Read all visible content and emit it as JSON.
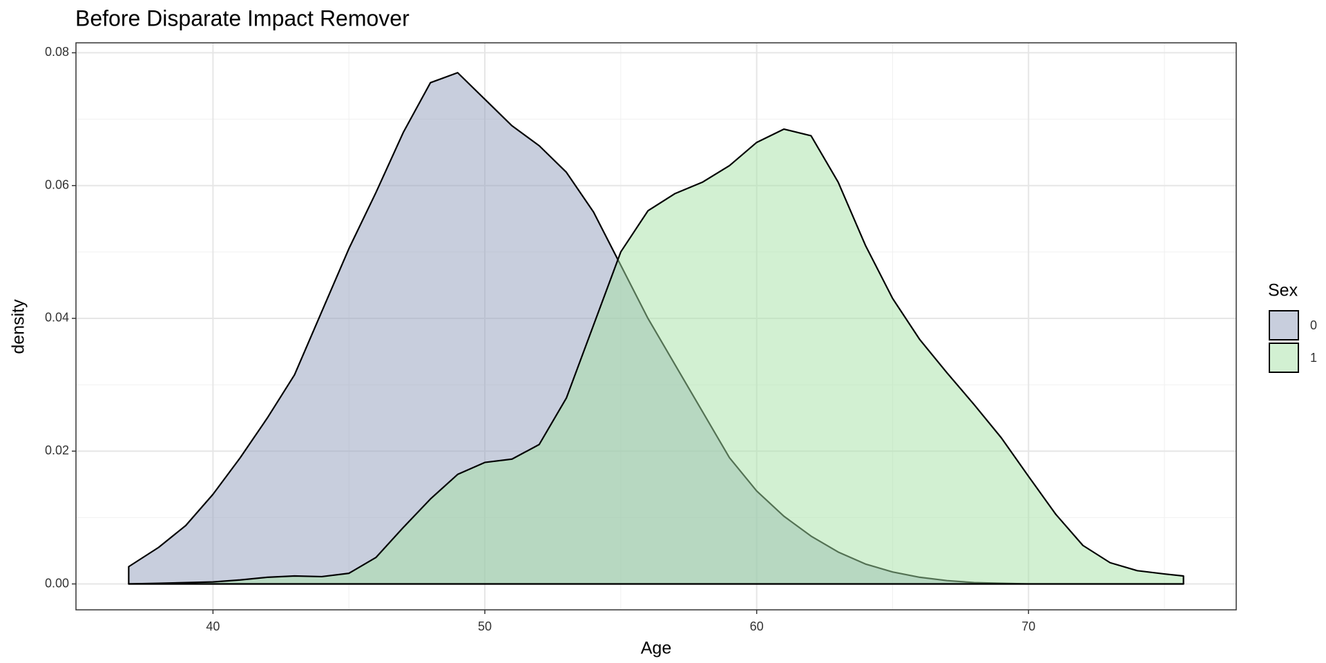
{
  "chart_data": {
    "type": "density",
    "title": "Before Disparate Impact Remover",
    "x_label": "Age",
    "y_label": "density",
    "legend_title": "Sex",
    "legend_position": "right",
    "x": [
      36.9,
      38,
      39,
      40,
      41,
      42,
      43,
      44,
      45,
      46,
      47,
      48,
      49,
      50,
      51,
      52,
      53,
      54,
      55,
      56,
      57,
      58,
      59,
      60,
      61,
      62,
      63,
      64,
      65,
      66,
      67,
      68,
      69,
      70,
      71,
      72,
      73,
      74,
      75,
      75.7
    ],
    "series": [
      {
        "name": "0",
        "color": "#919dbb",
        "values": [
          0.0026,
          0.0055,
          0.0088,
          0.0135,
          0.019,
          0.025,
          0.0315,
          0.041,
          0.0505,
          0.059,
          0.068,
          0.0755,
          0.077,
          0.073,
          0.069,
          0.066,
          0.062,
          0.056,
          0.048,
          0.04,
          0.033,
          0.026,
          0.019,
          0.014,
          0.0102,
          0.0072,
          0.0048,
          0.003,
          0.0018,
          0.001,
          0.0005,
          0.0002,
          0.0001,
          0,
          0,
          0,
          0,
          0,
          0,
          0
        ]
      },
      {
        "name": "1",
        "color": "#a6e2a6",
        "values": [
          0,
          0.0001,
          0.0002,
          0.0003,
          0.0006,
          0.001,
          0.0012,
          0.0011,
          0.0016,
          0.004,
          0.0085,
          0.0128,
          0.0165,
          0.0183,
          0.0188,
          0.021,
          0.028,
          0.039,
          0.05,
          0.0562,
          0.0588,
          0.0605,
          0.063,
          0.0665,
          0.0685,
          0.0675,
          0.0605,
          0.051,
          0.043,
          0.0368,
          0.0318,
          0.027,
          0.022,
          0.0162,
          0.0105,
          0.0058,
          0.0032,
          0.002,
          0.0015,
          0.0012
        ]
      }
    ],
    "fill_opacity": 0.5,
    "xlim": [
      34.96,
      77.64
    ],
    "xticks": [
      40,
      50,
      60,
      70
    ],
    "x_minor_gridlines": [
      45,
      55,
      65,
      75
    ],
    "ylim": [
      -0.0039,
      0.0815
    ],
    "yticks": [
      {
        "value": 0,
        "label": "0.00"
      },
      {
        "value": 0.02,
        "label": "0.02"
      },
      {
        "value": 0.04,
        "label": "0.04"
      },
      {
        "value": 0.06,
        "label": "0.06"
      },
      {
        "value": 0.08,
        "label": "0.08"
      }
    ],
    "y_minor_gridlines": [
      0.01,
      0.03,
      0.05,
      0.07
    ],
    "grid": true
  }
}
